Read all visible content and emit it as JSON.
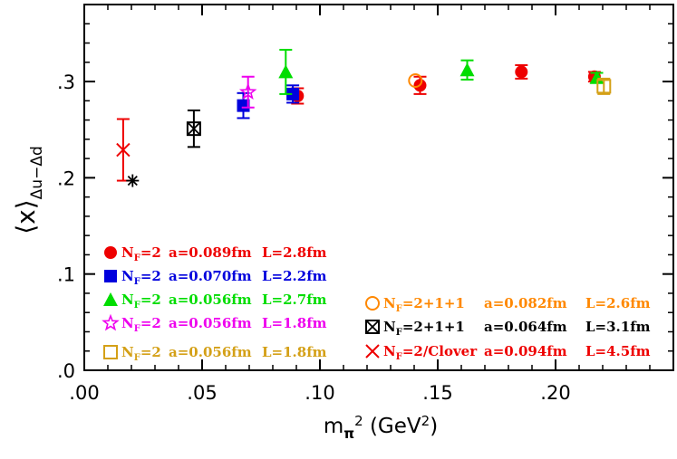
{
  "chart_data": {
    "type": "scatter",
    "title": "",
    "xlabel": "m_π² (GeV²)",
    "ylabel": "⟨x⟩_{Δu−Δd}",
    "xlim": [
      0.0,
      0.25
    ],
    "ylim": [
      0.0,
      0.38
    ],
    "x_ticks": [
      0.0,
      0.05,
      0.1,
      0.15,
      0.2
    ],
    "x_tick_labels": [
      ".00",
      ".05",
      ".10",
      ".15",
      ".20"
    ],
    "y_ticks": [
      0.0,
      0.1,
      0.2,
      0.3
    ],
    "y_tick_labels": [
      ".0",
      ".1",
      ".2",
      ".3"
    ],
    "grid": false,
    "legend_placement": "bottom",
    "series": [
      {
        "name": "N_F=2  a=0.089fm  L=2.8fm",
        "color": "#ee0000",
        "marker": "filled-circle",
        "points": [
          {
            "x": 0.0905,
            "y": 0.285,
            "err": 0.008
          },
          {
            "x": 0.1425,
            "y": 0.296,
            "err": 0.009
          },
          {
            "x": 0.1855,
            "y": 0.31,
            "err": 0.007
          },
          {
            "x": 0.2165,
            "y": 0.305,
            "err": 0.005
          }
        ]
      },
      {
        "name": "N_F=2  a=0.070fm  L=2.2fm",
        "color": "#0000dd",
        "marker": "filled-square",
        "points": [
          {
            "x": 0.0675,
            "y": 0.275,
            "err": 0.013
          },
          {
            "x": 0.0885,
            "y": 0.287,
            "err": 0.009
          }
        ]
      },
      {
        "name": "N_F=2  a=0.056fm  L=2.7fm",
        "color": "#00dd00",
        "marker": "filled-triangle",
        "points": [
          {
            "x": 0.0855,
            "y": 0.31,
            "err": 0.023
          },
          {
            "x": 0.1625,
            "y": 0.312,
            "err": 0.01
          },
          {
            "x": 0.2175,
            "y": 0.304,
            "err": 0.005
          }
        ]
      },
      {
        "name": "N_F=2  a=0.056fm  L=1.8fm",
        "color": "#ee00ee",
        "marker": "star",
        "points": [
          {
            "x": 0.0695,
            "y": 0.289,
            "err": 0.016
          }
        ]
      },
      {
        "name": "N_F=2  a=0.056fm  L=1.8fm",
        "color": "#d4a017",
        "marker": "open-square",
        "points": [
          {
            "x": 0.2205,
            "y": 0.295,
            "err": 0.008
          }
        ]
      },
      {
        "name": "N_F=2+1+1  a=0.082fm  L=2.6fm",
        "color": "#ff8800",
        "marker": "open-circle",
        "points": [
          {
            "x": 0.1405,
            "y": 0.301,
            "err": 0
          }
        ]
      },
      {
        "name": "N_F=2+1+1  a=0.064fm  L=3.1fm",
        "color": "#000000",
        "marker": "crossed-square",
        "points": [
          {
            "x": 0.0465,
            "y": 0.251,
            "err": 0.019
          }
        ]
      },
      {
        "name": "N_F=2/Clover  a=0.094fm  L=4.5fm",
        "color": "#ee0000",
        "marker": "x-cross",
        "points": [
          {
            "x": 0.0165,
            "y": 0.229,
            "err": 0.032,
            "err_low": 0.032,
            "err_high": 0.032
          }
        ]
      },
      {
        "name": "",
        "color": "#000000",
        "marker": "asterisk",
        "points": [
          {
            "x": 0.0205,
            "y": 0.197,
            "err": 0
          }
        ]
      }
    ],
    "legend_left": [
      {
        "series": 0,
        "nf": "2",
        "a": "a=0.089fm",
        "l": "L=2.8fm"
      },
      {
        "series": 1,
        "nf": "2",
        "a": "a=0.070fm",
        "l": "L=2.2fm"
      },
      {
        "series": 2,
        "nf": "2",
        "a": "a=0.056fm",
        "l": "L=2.7fm"
      },
      {
        "series": 3,
        "nf": "2",
        "a": "a=0.056fm",
        "l": "L=1.8fm"
      },
      {
        "series": 4,
        "nf": "2",
        "a": "a=0.056fm",
        "l": "L=1.8fm"
      }
    ],
    "legend_right": [
      {
        "series": 5,
        "nf": "2+1+1",
        "a": "a=0.082fm",
        "l": "L=2.6fm"
      },
      {
        "series": 6,
        "nf": "2+1+1",
        "a": "a=0.064fm",
        "l": "L=3.1fm"
      },
      {
        "series": 7,
        "nf": "2/Clover",
        "a": "a=0.094fm",
        "l": "L=4.5fm"
      }
    ]
  }
}
